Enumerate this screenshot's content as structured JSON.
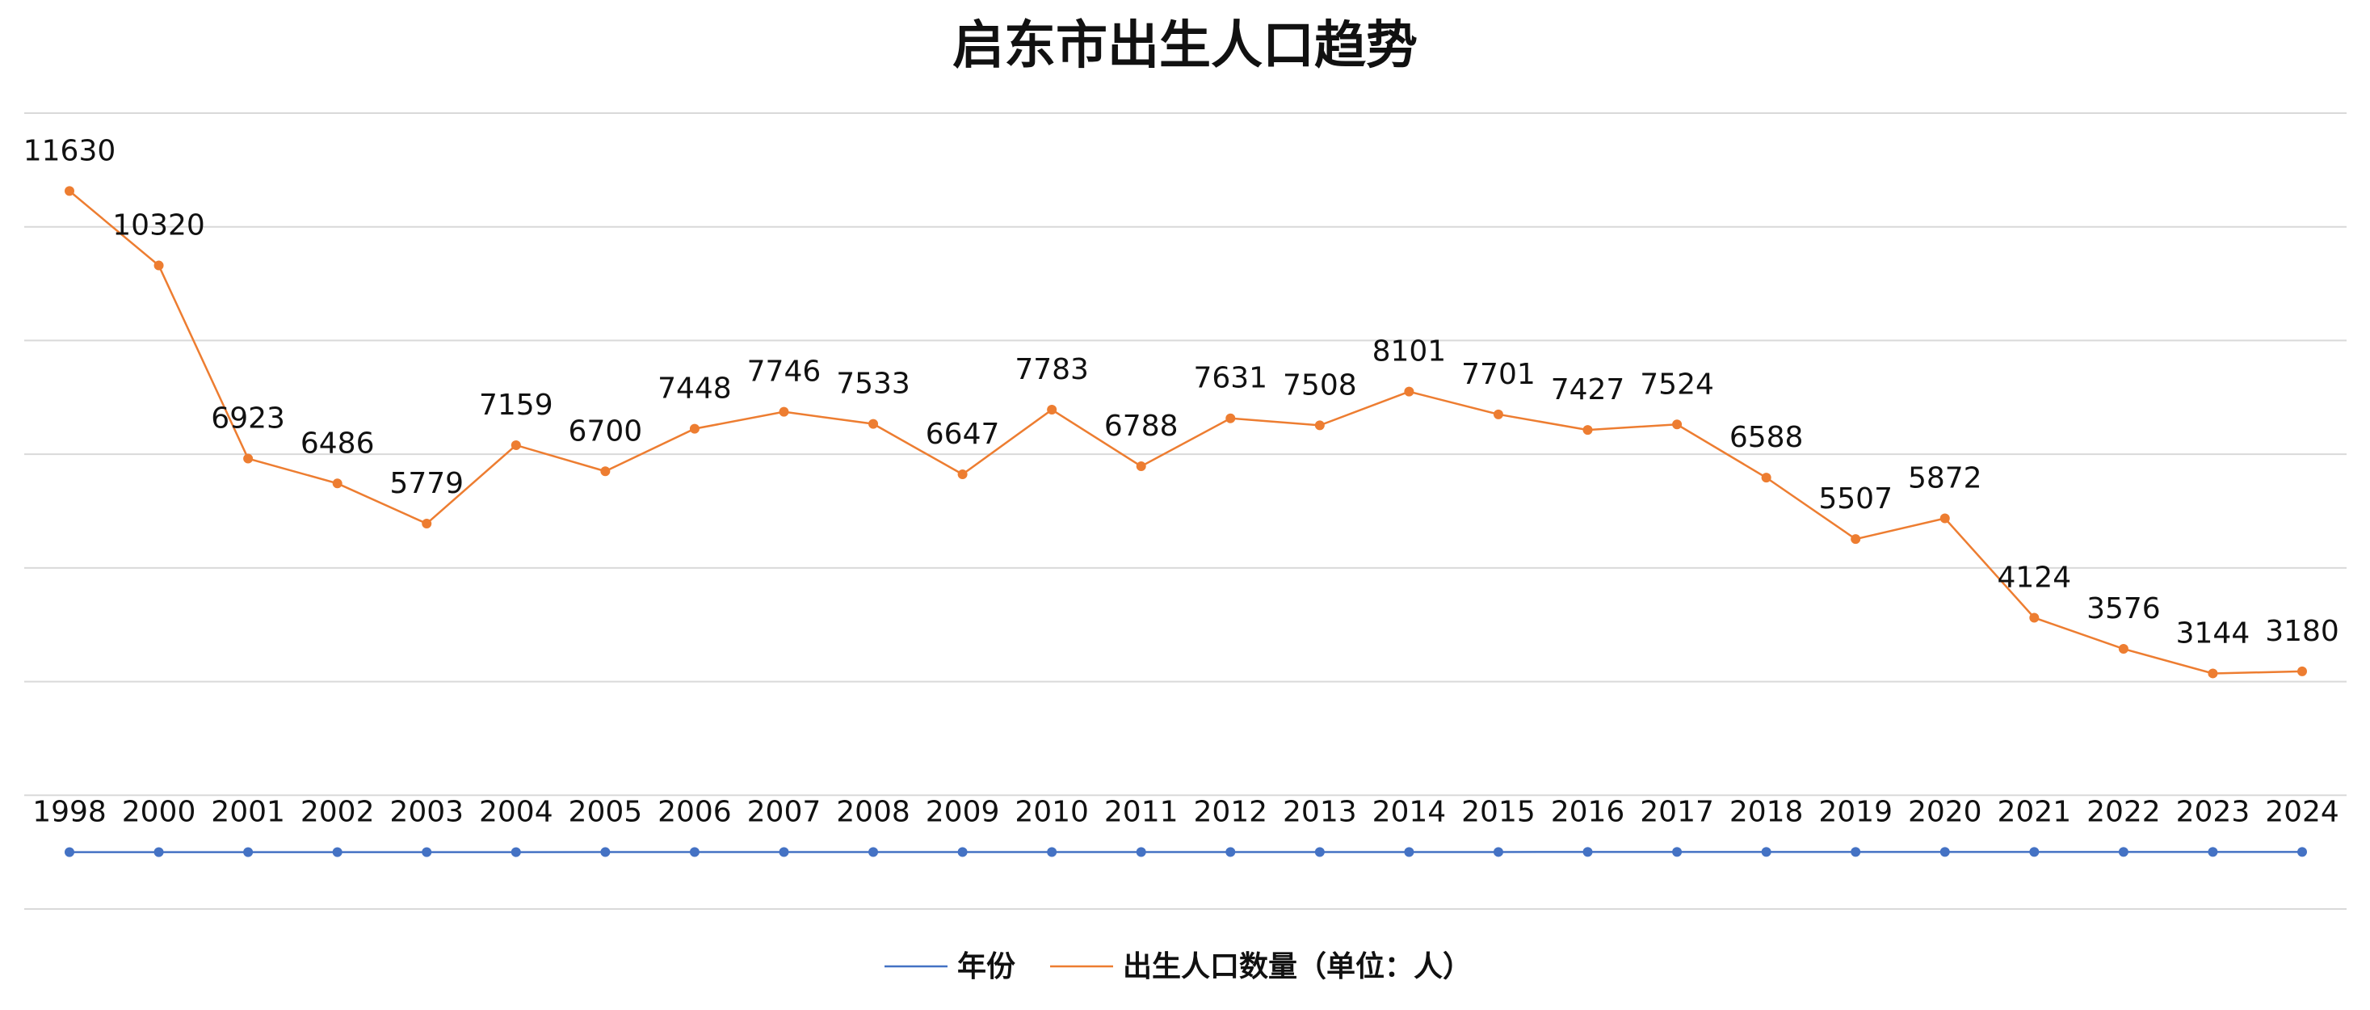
{
  "chart_data": {
    "type": "line",
    "title": "启东市出生人口趋势",
    "xlabel": "",
    "ylabel": "",
    "ylim": [
      -1000,
      13000
    ],
    "grid": true,
    "legend_position": "bottom",
    "x": [
      "1998",
      "2000",
      "2001",
      "2002",
      "2003",
      "2004",
      "2005",
      "2006",
      "2007",
      "2008",
      "2009",
      "2010",
      "2011",
      "2012",
      "2013",
      "2014",
      "2015",
      "2016",
      "2017",
      "2018",
      "2019",
      "2020",
      "2021",
      "2022",
      "2023",
      "2024"
    ],
    "series": [
      {
        "name": "年份",
        "color": "#4472C4",
        "values": [
          1998,
          2000,
          2001,
          2002,
          2003,
          2004,
          2005,
          2006,
          2007,
          2008,
          2009,
          2010,
          2011,
          2012,
          2013,
          2014,
          2015,
          2016,
          2017,
          2018,
          2019,
          2020,
          2021,
          2022,
          2023,
          2024
        ]
      },
      {
        "name": "出生人口数量（单位：人）",
        "color": "#ED7D31",
        "values": [
          11630,
          10320,
          6923,
          6486,
          5779,
          7159,
          6700,
          7448,
          7746,
          7533,
          6647,
          7783,
          6788,
          7631,
          7508,
          8101,
          7701,
          7427,
          7524,
          6588,
          5507,
          5872,
          4124,
          3576,
          3144,
          3180
        ]
      }
    ]
  }
}
